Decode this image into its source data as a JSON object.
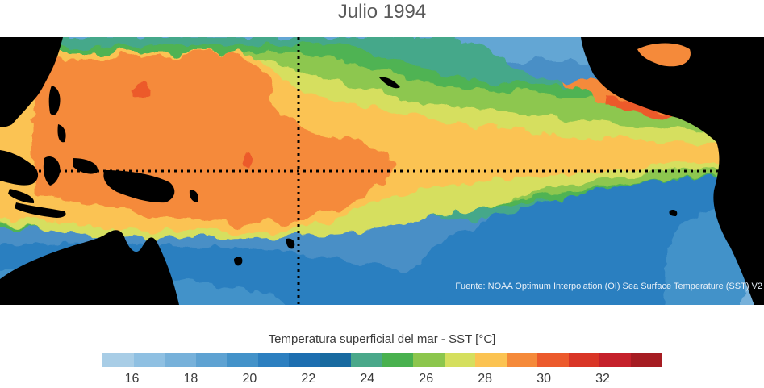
{
  "title": "Julio 1994",
  "source_note": "Fuente: NOAA Optimum Interpolation (OI) Sea Surface Temperature (SST) V2",
  "colorbar": {
    "title": "Temperatura superficial del mar - SST  [°C]",
    "min": 15,
    "max": 34,
    "ticks": [
      "16",
      "18",
      "20",
      "22",
      "24",
      "26",
      "28",
      "30",
      "32"
    ],
    "colors": [
      "#a8cde6",
      "#8fc0e2",
      "#77b1da",
      "#5ea2d2",
      "#4392c9",
      "#2c7fc0",
      "#1c6eb0",
      "#186aa0",
      "#4aa88a",
      "#49b14f",
      "#8cc64d",
      "#d5df5e",
      "#fbc352",
      "#f58a3a",
      "#ec5a2c",
      "#d93526",
      "#c5202a",
      "#a61c22"
    ]
  }
}
